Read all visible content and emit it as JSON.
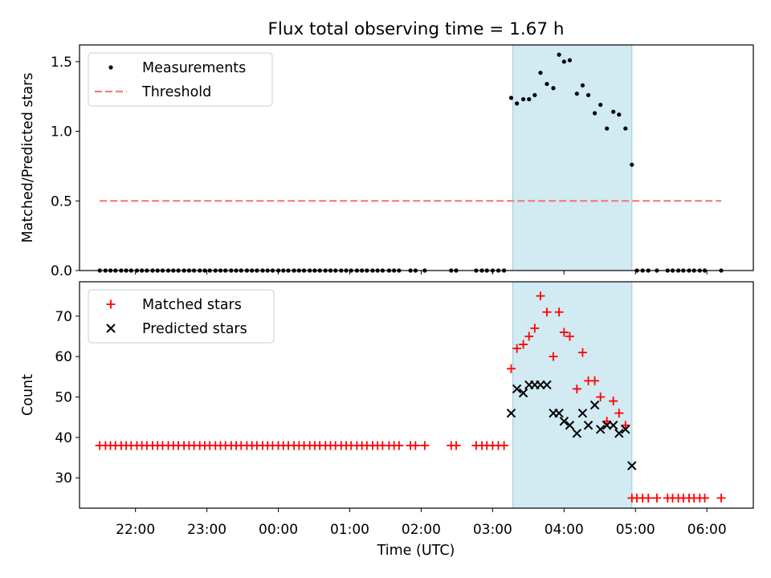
{
  "chart_data": {
    "title": "Flux total observing time = 1.67 h",
    "xlabel": "Time (UTC)",
    "x_unit": "hours UTC (values above 24 are past midnight)",
    "xlim": [
      "21:13",
      "06:39"
    ],
    "x_ticks": [
      "22:00",
      "23:00",
      "00:00",
      "01:00",
      "02:00",
      "03:00",
      "04:00",
      "05:00",
      "06:00"
    ],
    "highlight_span": {
      "start": "03:17",
      "end": "04:57",
      "color": "#add8e6"
    },
    "panels": [
      {
        "type": "scatter",
        "ylabel": "Matched/Predicted stars",
        "ylim": [
          0,
          1.62
        ],
        "y_ticks": [
          "0.0",
          "0.5",
          "1.0",
          "1.5"
        ],
        "legend": {
          "position": "upper-left",
          "entries": [
            "Measurements",
            "Threshold"
          ]
        },
        "threshold": {
          "name": "Threshold",
          "value": 0.5,
          "x_range": [
            "21:30",
            "06:12"
          ],
          "color": "#f08080",
          "style": "dashed"
        },
        "series": [
          {
            "name": "Measurements",
            "marker": "dot",
            "color": "#000000",
            "x": [
              21.5,
              21.58,
              21.65,
              21.72,
              21.8,
              21.87,
              21.94,
              22.02,
              22.09,
              22.16,
              22.24,
              22.31,
              22.38,
              22.46,
              22.53,
              22.6,
              22.68,
              22.75,
              22.82,
              22.9,
              22.97,
              23.04,
              23.12,
              23.19,
              23.26,
              23.34,
              23.41,
              23.48,
              23.56,
              23.63,
              23.7,
              23.78,
              23.85,
              23.92,
              24.0,
              24.07,
              24.14,
              24.22,
              24.29,
              24.36,
              24.44,
              24.51,
              24.58,
              24.66,
              24.73,
              24.8,
              24.88,
              24.95,
              25.02,
              25.1,
              25.17,
              25.24,
              25.32,
              25.39,
              25.46,
              25.55,
              25.62,
              25.69,
              25.85,
              25.92,
              26.05,
              26.42,
              26.49,
              26.77,
              26.85,
              26.92,
              27.0,
              27.08,
              27.16,
              27.26,
              27.34,
              27.43,
              27.51,
              27.59,
              27.67,
              27.76,
              27.85,
              27.93,
              28.0,
              28.08,
              28.18,
              28.26,
              28.34,
              28.43,
              28.51,
              28.6,
              28.69,
              28.77,
              28.86,
              28.95,
              29.02,
              29.1,
              29.18,
              29.3,
              29.45,
              29.52,
              29.6,
              29.67,
              29.75,
              29.82,
              29.9,
              29.97,
              30.2
            ],
            "y": [
              0,
              0,
              0,
              0,
              0,
              0,
              0,
              0,
              0,
              0,
              0,
              0,
              0,
              0,
              0,
              0,
              0,
              0,
              0,
              0,
              0,
              0,
              0,
              0,
              0,
              0,
              0,
              0,
              0,
              0,
              0,
              0,
              0,
              0,
              0,
              0,
              0,
              0,
              0,
              0,
              0,
              0,
              0,
              0,
              0,
              0,
              0,
              0,
              0,
              0,
              0,
              0,
              0,
              0,
              0,
              0,
              0,
              0,
              0,
              0,
              0,
              0,
              0,
              0,
              0,
              0,
              0,
              0,
              0,
              1.24,
              1.2,
              1.23,
              1.23,
              1.26,
              1.42,
              1.34,
              1.31,
              1.55,
              1.5,
              1.51,
              1.27,
              1.33,
              1.26,
              1.13,
              1.19,
              1.02,
              1.14,
              1.12,
              1.02,
              0.76,
              0,
              0,
              0,
              0,
              0,
              0,
              0,
              0,
              0,
              0,
              0,
              0,
              0
            ]
          }
        ]
      },
      {
        "type": "scatter",
        "ylabel": "Count",
        "ylim": [
          22.5,
          78.5
        ],
        "y_ticks": [
          "30",
          "40",
          "50",
          "60",
          "70"
        ],
        "legend": {
          "position": "upper-left",
          "entries": [
            "Matched stars",
            "Predicted stars"
          ]
        },
        "series": [
          {
            "name": "Matched stars",
            "marker": "plus",
            "color": "#ff0000",
            "x": [
              21.5,
              21.58,
              21.65,
              21.72,
              21.8,
              21.87,
              21.94,
              22.02,
              22.09,
              22.16,
              22.24,
              22.31,
              22.38,
              22.46,
              22.53,
              22.6,
              22.68,
              22.75,
              22.82,
              22.9,
              22.97,
              23.04,
              23.12,
              23.19,
              23.26,
              23.34,
              23.41,
              23.48,
              23.56,
              23.63,
              23.7,
              23.78,
              23.85,
              23.92,
              24.0,
              24.07,
              24.14,
              24.22,
              24.29,
              24.36,
              24.44,
              24.51,
              24.58,
              24.66,
              24.73,
              24.8,
              24.88,
              24.95,
              25.02,
              25.1,
              25.17,
              25.24,
              25.32,
              25.39,
              25.46,
              25.55,
              25.62,
              25.69,
              25.85,
              25.92,
              26.05,
              26.42,
              26.49,
              26.77,
              26.85,
              26.92,
              27.0,
              27.08,
              27.16,
              27.26,
              27.34,
              27.43,
              27.51,
              27.59,
              27.67,
              27.76,
              27.85,
              27.93,
              28.0,
              28.08,
              28.18,
              28.26,
              28.34,
              28.43,
              28.51,
              28.6,
              28.69,
              28.77,
              28.86,
              28.95,
              29.02,
              29.1,
              29.18,
              29.3,
              29.45,
              29.52,
              29.6,
              29.67,
              29.75,
              29.82,
              29.9,
              29.97,
              30.2
            ],
            "y": [
              38,
              38,
              38,
              38,
              38,
              38,
              38,
              38,
              38,
              38,
              38,
              38,
              38,
              38,
              38,
              38,
              38,
              38,
              38,
              38,
              38,
              38,
              38,
              38,
              38,
              38,
              38,
              38,
              38,
              38,
              38,
              38,
              38,
              38,
              38,
              38,
              38,
              38,
              38,
              38,
              38,
              38,
              38,
              38,
              38,
              38,
              38,
              38,
              38,
              38,
              38,
              38,
              38,
              38,
              38,
              38,
              38,
              38,
              38,
              38,
              38,
              38,
              38,
              38,
              38,
              38,
              38,
              38,
              38,
              57,
              62,
              63,
              65,
              67,
              75,
              71,
              60,
              71,
              66,
              65,
              52,
              61,
              54,
              54,
              50,
              44,
              49,
              46,
              43,
              25,
              25,
              25,
              25,
              25,
              25,
              25,
              25,
              25,
              25,
              25,
              25,
              25,
              25
            ]
          },
          {
            "name": "Predicted stars",
            "marker": "x",
            "color": "#000000",
            "x": [
              27.26,
              27.34,
              27.43,
              27.51,
              27.59,
              27.67,
              27.76,
              27.85,
              27.93,
              28.0,
              28.08,
              28.18,
              28.26,
              28.34,
              28.43,
              28.51,
              28.6,
              28.69,
              28.77,
              28.86,
              28.95
            ],
            "y": [
              46,
              52,
              51,
              53,
              53,
              53,
              53,
              46,
              46,
              44,
              43,
              41,
              46,
              43,
              48,
              42,
              43,
              43,
              41,
              42,
              33
            ]
          }
        ]
      }
    ]
  }
}
